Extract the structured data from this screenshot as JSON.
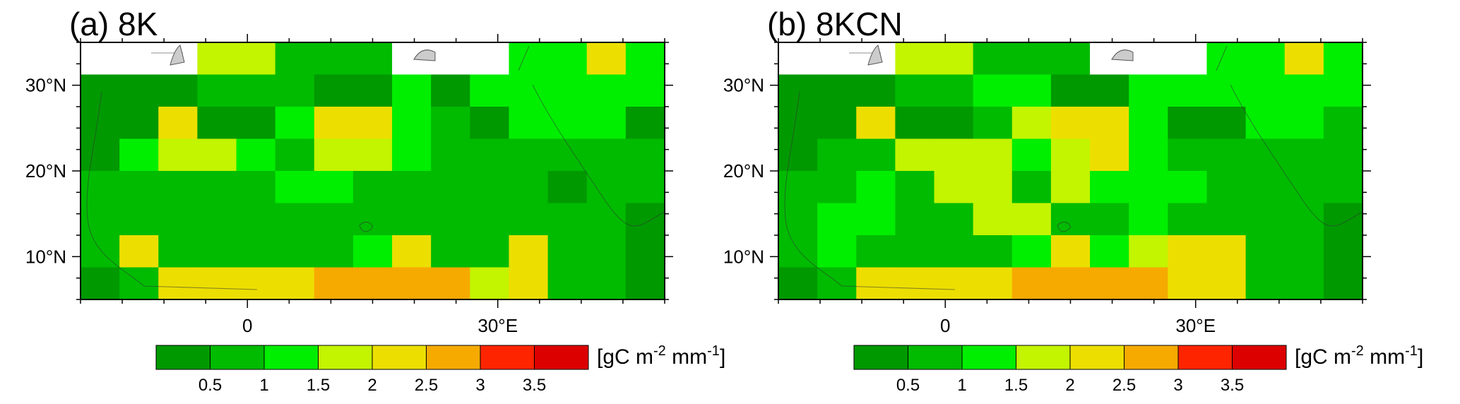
{
  "colorbar": {
    "colors": [
      "#009900",
      "#00bb00",
      "#00ee00",
      "#c3f400",
      "#ecdf00",
      "#f6aa00",
      "#ff2400",
      "#dd0000"
    ],
    "tick_labels": [
      "0.5",
      "1",
      "1.5",
      "2",
      "2.5",
      "3",
      "3.5"
    ],
    "unit": {
      "prefix": "[gC m",
      "exp1": "-2",
      "mid": " mm",
      "exp2": "-1",
      "suffix": "]"
    }
  },
  "axes": {
    "lat_labels": [
      "30°N",
      "20°N",
      "10°N"
    ],
    "lon_labels": [
      "0",
      "30°E"
    ],
    "lat_range": [
      5,
      35
    ],
    "lon_range": [
      -20,
      50
    ]
  },
  "panels": [
    {
      "title": "(a) 8K",
      "grid": [
        [
          -1,
          -1,
          -1,
          3,
          3,
          1,
          1,
          1,
          -1,
          -1,
          -1,
          2,
          2,
          4,
          2
        ],
        [
          0,
          0,
          0,
          1,
          1,
          1,
          0,
          0,
          2,
          0,
          2,
          2,
          2,
          2,
          2
        ],
        [
          0,
          0,
          4,
          0,
          0,
          2,
          4,
          4,
          2,
          1,
          0,
          2,
          2,
          2,
          0
        ],
        [
          0,
          2,
          3,
          3,
          2,
          1,
          3,
          3,
          2,
          1,
          1,
          1,
          1,
          1,
          1
        ],
        [
          1,
          1,
          1,
          1,
          1,
          2,
          2,
          1,
          1,
          1,
          1,
          1,
          0,
          1,
          1
        ],
        [
          1,
          1,
          1,
          1,
          1,
          1,
          1,
          1,
          1,
          1,
          1,
          1,
          1,
          1,
          0
        ],
        [
          1,
          4,
          1,
          1,
          1,
          1,
          1,
          2,
          4,
          1,
          1,
          4,
          1,
          1,
          0
        ],
        [
          0,
          1,
          4,
          4,
          4,
          4,
          5,
          5,
          5,
          5,
          3,
          4,
          1,
          1,
          0
        ]
      ]
    },
    {
      "title": "(b) 8KCN",
      "grid": [
        [
          -1,
          -1,
          -1,
          3,
          3,
          1,
          1,
          1,
          -1,
          -1,
          -1,
          2,
          2,
          4,
          2
        ],
        [
          0,
          0,
          0,
          1,
          1,
          2,
          2,
          0,
          0,
          2,
          2,
          2,
          2,
          2,
          2
        ],
        [
          0,
          0,
          4,
          0,
          0,
          1,
          3,
          4,
          4,
          2,
          0,
          0,
          2,
          2,
          1
        ],
        [
          0,
          1,
          1,
          3,
          3,
          3,
          2,
          3,
          4,
          2,
          1,
          1,
          1,
          1,
          1
        ],
        [
          1,
          1,
          2,
          1,
          3,
          3,
          1,
          3,
          2,
          2,
          2,
          1,
          1,
          1,
          1
        ],
        [
          1,
          2,
          2,
          1,
          1,
          3,
          3,
          1,
          1,
          2,
          1,
          1,
          1,
          1,
          0
        ],
        [
          1,
          2,
          1,
          1,
          1,
          1,
          2,
          4,
          2,
          3,
          4,
          4,
          1,
          1,
          0
        ],
        [
          0,
          1,
          4,
          4,
          4,
          4,
          5,
          5,
          5,
          5,
          4,
          4,
          1,
          1,
          0
        ]
      ]
    }
  ]
}
